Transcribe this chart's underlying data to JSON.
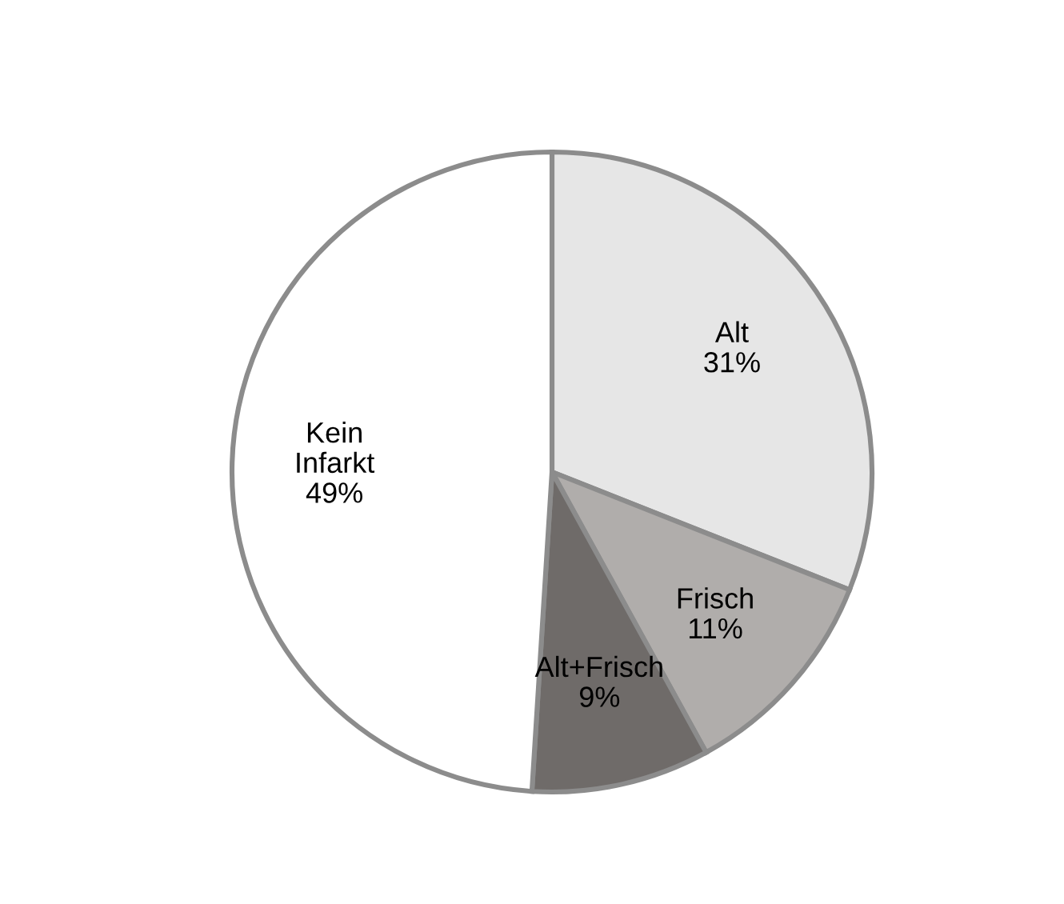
{
  "chart_data": {
    "type": "pie",
    "categories": [
      "Alt",
      "Frisch",
      "Alt+Frisch",
      "Kein Infarkt"
    ],
    "values": [
      31,
      11,
      9,
      49
    ],
    "value_labels": [
      "31%",
      "11%",
      "9%",
      "49%"
    ],
    "colors": [
      "#e6e6e6",
      "#b0adab",
      "#6f6b69",
      "#ffffff"
    ],
    "legend": false
  }
}
